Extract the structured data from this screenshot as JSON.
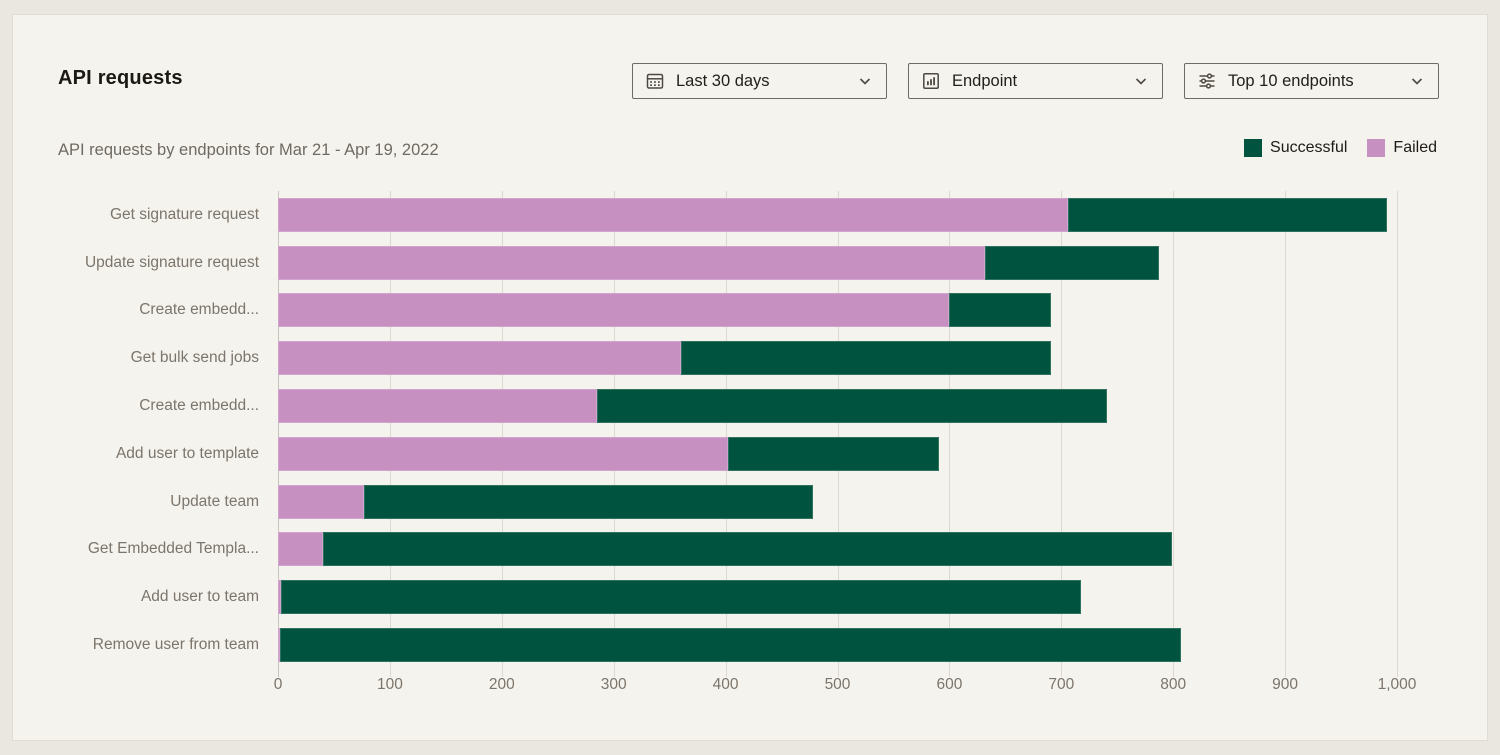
{
  "header": {
    "title": "API requests"
  },
  "filters": [
    {
      "icon": "calendar-icon",
      "label": "Last 30 days"
    },
    {
      "icon": "bar-chart-icon",
      "label": "Endpoint"
    },
    {
      "icon": "sliders-icon",
      "label": "Top 10 endpoints"
    }
  ],
  "subtitle": "API requests by endpoints for Mar 21 - Apr 19, 2022",
  "legend": [
    {
      "label": "Successful",
      "color": "#00533e"
    },
    {
      "label": "Failed",
      "color": "#c691c1"
    }
  ],
  "chart_data": {
    "type": "bar",
    "orientation": "horizontal",
    "stacked": true,
    "title": "API requests by endpoints for Mar 21 - Apr 19, 2022",
    "categories": [
      "Get signature request",
      "Update signature request",
      "Create embedd...",
      "Get bulk send jobs",
      "Create embedd...",
      "Add user to template",
      "Update team",
      "Get Embedded Templa...",
      "Add user to team",
      "Remove user from team"
    ],
    "series": [
      {
        "name": "Failed",
        "color": "#c691c1",
        "values": [
          706,
          632,
          600,
          360,
          285,
          402,
          77,
          40,
          3,
          2
        ]
      },
      {
        "name": "Successful",
        "color": "#00533e",
        "values": [
          285,
          155,
          91,
          331,
          456,
          189,
          401,
          759,
          715,
          805
        ]
      }
    ],
    "xlim": [
      0,
      1000
    ],
    "x_ticks": [
      "0",
      "100",
      "200",
      "300",
      "400",
      "500",
      "600",
      "700",
      "800",
      "900",
      "1,000"
    ],
    "grid": true,
    "legend_position": "top-right"
  }
}
